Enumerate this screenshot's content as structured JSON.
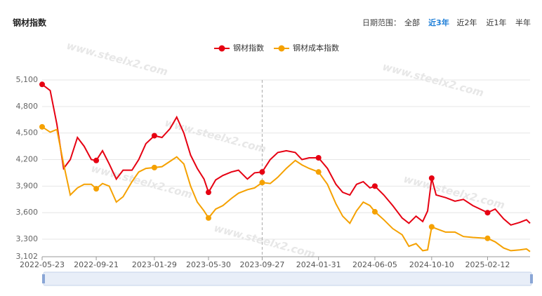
{
  "header": {
    "title": "钢材指数",
    "range_label": "日期范围：",
    "range_options": [
      "全部",
      "近3年",
      "近2年",
      "近1年",
      "半年"
    ],
    "active_option": 1
  },
  "watermark": "www.steelx2.com",
  "chart_data": {
    "type": "line",
    "x": [
      "2022-05-23",
      "2022-06-10",
      "2022-06-25",
      "2022-07-10",
      "2022-07-25",
      "2022-08-10",
      "2022-08-25",
      "2022-09-10",
      "2022-09-21",
      "2022-10-05",
      "2022-10-20",
      "2022-11-05",
      "2022-11-20",
      "2022-12-10",
      "2022-12-25",
      "2023-01-10",
      "2023-01-29",
      "2023-02-15",
      "2023-03-05",
      "2023-03-20",
      "2023-04-05",
      "2023-04-20",
      "2023-05-05",
      "2023-05-20",
      "2023-05-30",
      "2023-06-15",
      "2023-07-01",
      "2023-07-20",
      "2023-08-05",
      "2023-08-25",
      "2023-09-10",
      "2023-09-27",
      "2023-10-15",
      "2023-11-01",
      "2023-11-20",
      "2023-12-10",
      "2023-12-25",
      "2024-01-10",
      "2024-01-31",
      "2024-02-20",
      "2024-03-10",
      "2024-03-25",
      "2024-04-10",
      "2024-04-25",
      "2024-05-10",
      "2024-05-25",
      "2024-06-05",
      "2024-06-25",
      "2024-07-15",
      "2024-08-05",
      "2024-08-20",
      "2024-09-05",
      "2024-09-20",
      "2024-10-01",
      "2024-10-10",
      "2024-10-20",
      "2024-11-10",
      "2024-12-01",
      "2024-12-20",
      "2025-01-10",
      "2025-02-12",
      "2025-03-01",
      "2025-03-20",
      "2025-04-05",
      "2025-04-25",
      "2025-05-10",
      "2025-05-18"
    ],
    "series": [
      {
        "name": "钢材指数",
        "color": "#e60012",
        "values": [
          5050,
          4980,
          4600,
          4100,
          4200,
          4450,
          4350,
          4200,
          4190,
          4300,
          4150,
          3980,
          4080,
          4080,
          4200,
          4380,
          4470,
          4450,
          4550,
          4680,
          4500,
          4250,
          4100,
          3980,
          3830,
          3970,
          4020,
          4060,
          4080,
          3980,
          4050,
          4060,
          4200,
          4280,
          4300,
          4280,
          4200,
          4220,
          4220,
          4100,
          3920,
          3830,
          3800,
          3920,
          3950,
          3880,
          3900,
          3800,
          3680,
          3540,
          3480,
          3560,
          3500,
          3620,
          3990,
          3800,
          3770,
          3730,
          3750,
          3680,
          3600,
          3640,
          3530,
          3460,
          3490,
          3520,
          3480
        ]
      },
      {
        "name": "钢材成本指数",
        "color": "#f5a100",
        "values": [
          4570,
          4510,
          4540,
          4150,
          3800,
          3880,
          3920,
          3920,
          3870,
          3930,
          3900,
          3720,
          3780,
          3950,
          4060,
          4100,
          4110,
          4120,
          4180,
          4230,
          4150,
          3900,
          3720,
          3620,
          3540,
          3640,
          3680,
          3760,
          3820,
          3860,
          3880,
          3940,
          3930,
          4000,
          4100,
          4190,
          4140,
          4100,
          4060,
          3920,
          3700,
          3560,
          3480,
          3620,
          3720,
          3680,
          3610,
          3520,
          3420,
          3350,
          3220,
          3250,
          3170,
          3180,
          3440,
          3420,
          3380,
          3380,
          3330,
          3320,
          3310,
          3270,
          3200,
          3170,
          3180,
          3190,
          3160
        ]
      }
    ],
    "xlim": [
      "2022-05-23",
      "2025-05-18"
    ],
    "xticks": [
      "2022-05-23",
      "2022-09-21",
      "2023-01-29",
      "2023-05-30",
      "2023-09-27",
      "2024-01-31",
      "2024-06-05",
      "2024-10-10",
      "2025-02-12"
    ],
    "ylim": [
      3102,
      5100
    ],
    "yticks": [
      {
        "value": 3102,
        "label": "3,102"
      },
      {
        "value": 3300,
        "label": "3,300"
      },
      {
        "value": 3600,
        "label": "3,600"
      },
      {
        "value": 3900,
        "label": "3,900"
      },
      {
        "value": 4200,
        "label": "4,200"
      },
      {
        "value": 4500,
        "label": "4,500"
      },
      {
        "value": 4800,
        "label": "4,800"
      },
      {
        "value": 5100,
        "label": "5,100"
      }
    ],
    "grid": true,
    "legend": "top"
  }
}
